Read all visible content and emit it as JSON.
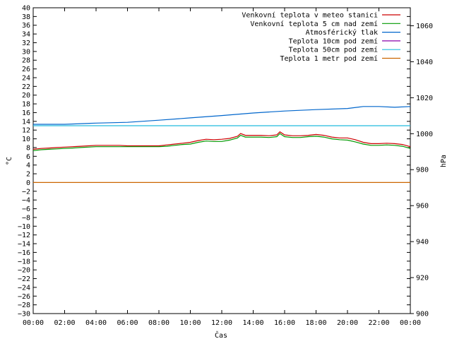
{
  "chart_data": {
    "type": "line",
    "xlabel": "Čas",
    "ylabel": "°C",
    "y2label": "hPa",
    "x_ticks": [
      "00:00",
      "02:00",
      "04:00",
      "06:00",
      "08:00",
      "10:00",
      "12:00",
      "14:00",
      "16:00",
      "18:00",
      "20:00",
      "22:00",
      "00:00"
    ],
    "xlim": [
      0,
      24
    ],
    "ylim": [
      -30,
      40
    ],
    "y2lim": [
      900,
      1070
    ],
    "y_tick_step": 2,
    "y2_tick_step": 20,
    "grid": false,
    "legend_position": "top-right",
    "series": [
      {
        "name": "Venkovní teplota v meteo stanici",
        "color": "#cc0000",
        "axis": "left",
        "x": [
          0,
          0.5,
          1,
          1.5,
          2,
          2.5,
          3,
          3.5,
          4,
          4.5,
          5,
          5.5,
          6,
          6.5,
          7,
          7.5,
          8,
          8.5,
          9,
          9.5,
          10,
          10.5,
          11,
          11.5,
          12,
          12.5,
          13,
          13.2,
          13.5,
          14,
          14.5,
          15,
          15.5,
          15.7,
          16,
          16.5,
          17,
          17.5,
          18,
          18.5,
          19,
          19.5,
          20,
          20.5,
          21,
          21.5,
          22,
          22.5,
          23,
          23.5,
          24
        ],
        "y": [
          7.6,
          7.8,
          7.9,
          8.0,
          8.1,
          8.2,
          8.3,
          8.4,
          8.5,
          8.5,
          8.5,
          8.5,
          8.4,
          8.4,
          8.4,
          8.4,
          8.4,
          8.6,
          8.8,
          9.0,
          9.2,
          9.6,
          9.9,
          9.8,
          9.9,
          10.1,
          10.6,
          11.2,
          10.8,
          10.8,
          10.8,
          10.7,
          10.9,
          11.6,
          10.9,
          10.7,
          10.7,
          10.8,
          11.0,
          10.8,
          10.4,
          10.2,
          10.2,
          9.8,
          9.2,
          8.9,
          8.9,
          9.0,
          8.9,
          8.7,
          8.2
        ]
      },
      {
        "name": "Venkovní teplota 5 cm nad zemí",
        "color": "#009900",
        "axis": "left",
        "x": [
          0,
          0.5,
          1,
          1.5,
          2,
          2.5,
          3,
          3.5,
          4,
          4.5,
          5,
          5.5,
          6,
          6.5,
          7,
          7.5,
          8,
          8.5,
          9,
          9.5,
          10,
          10.5,
          11,
          11.5,
          12,
          12.5,
          13,
          13.2,
          13.5,
          14,
          14.5,
          15,
          15.5,
          15.7,
          16,
          16.5,
          17,
          17.5,
          18,
          18.5,
          19,
          19.5,
          20,
          20.5,
          21,
          21.5,
          22,
          22.5,
          23,
          23.5,
          24
        ],
        "y": [
          7.3,
          7.5,
          7.6,
          7.7,
          7.8,
          7.9,
          8.0,
          8.1,
          8.2,
          8.2,
          8.2,
          8.2,
          8.2,
          8.2,
          8.2,
          8.2,
          8.2,
          8.3,
          8.5,
          8.7,
          8.8,
          9.2,
          9.5,
          9.4,
          9.4,
          9.7,
          10.2,
          10.8,
          10.4,
          10.4,
          10.4,
          10.3,
          10.5,
          11.2,
          10.5,
          10.3,
          10.3,
          10.5,
          10.6,
          10.4,
          10.0,
          9.8,
          9.7,
          9.3,
          8.8,
          8.5,
          8.5,
          8.6,
          8.5,
          8.3,
          7.8
        ]
      },
      {
        "name": "Atmosférický tlak",
        "color": "#0066cc",
        "axis": "right",
        "x": [
          0,
          2,
          4,
          6,
          8,
          10,
          12,
          14,
          16,
          18,
          20,
          21,
          22,
          23,
          24
        ],
        "y": [
          1005.2,
          1005.2,
          1005.9,
          1006.3,
          1007.5,
          1008.8,
          1010.1,
          1011.5,
          1012.6,
          1013.4,
          1014.0,
          1015.1,
          1015.1,
          1014.7,
          1015.1
        ]
      },
      {
        "name": "Teplota 10cm pod zemí",
        "color": "#8800aa",
        "axis": "left",
        "x": [],
        "y": []
      },
      {
        "name": "Teplota 50cm pod zemí",
        "color": "#22bbdd",
        "axis": "left",
        "x": [
          0,
          24
        ],
        "y": [
          13,
          13
        ]
      },
      {
        "name": "Teplota 1 metr pod zemí",
        "color": "#cc6600",
        "axis": "left",
        "x": [
          0,
          24
        ],
        "y": [
          0,
          0
        ]
      }
    ]
  }
}
